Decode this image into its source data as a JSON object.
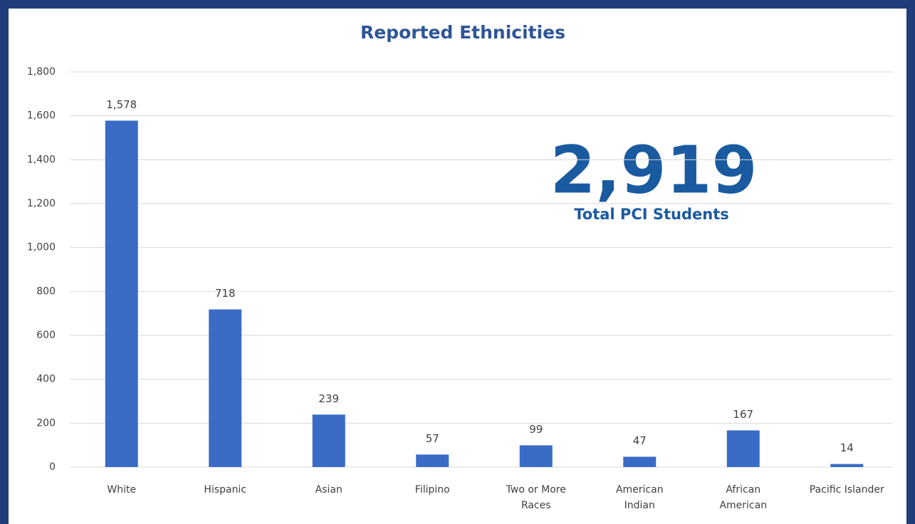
{
  "chart_data": {
    "type": "bar",
    "title": "Reported Ethnicities",
    "categories": [
      "White",
      "Hispanic",
      "Asian",
      "Filipino",
      "Two or More\nRaces",
      "American\nIndian",
      "African\nAmerican",
      "Pacific Islander"
    ],
    "values": [
      1578,
      718,
      239,
      57,
      99,
      47,
      167,
      14
    ],
    "value_labels": [
      "1,578",
      "718",
      "239",
      "57",
      "99",
      "47",
      "167",
      "14"
    ],
    "color": "#3a6cc6",
    "ylim": [
      0,
      1800
    ],
    "yticks": [
      0,
      200,
      400,
      600,
      800,
      {
        "value": 1000,
        "label": "1,000"
      },
      {
        "value": 1200,
        "label": "1,200"
      },
      {
        "value": 1400,
        "label": "1,400"
      },
      {
        "value": 1600,
        "label": "1,600"
      },
      {
        "value": 1800,
        "label": "1,800"
      }
    ],
    "grid": true,
    "annotations": [
      "2,919",
      "Total PCI Students"
    ]
  }
}
